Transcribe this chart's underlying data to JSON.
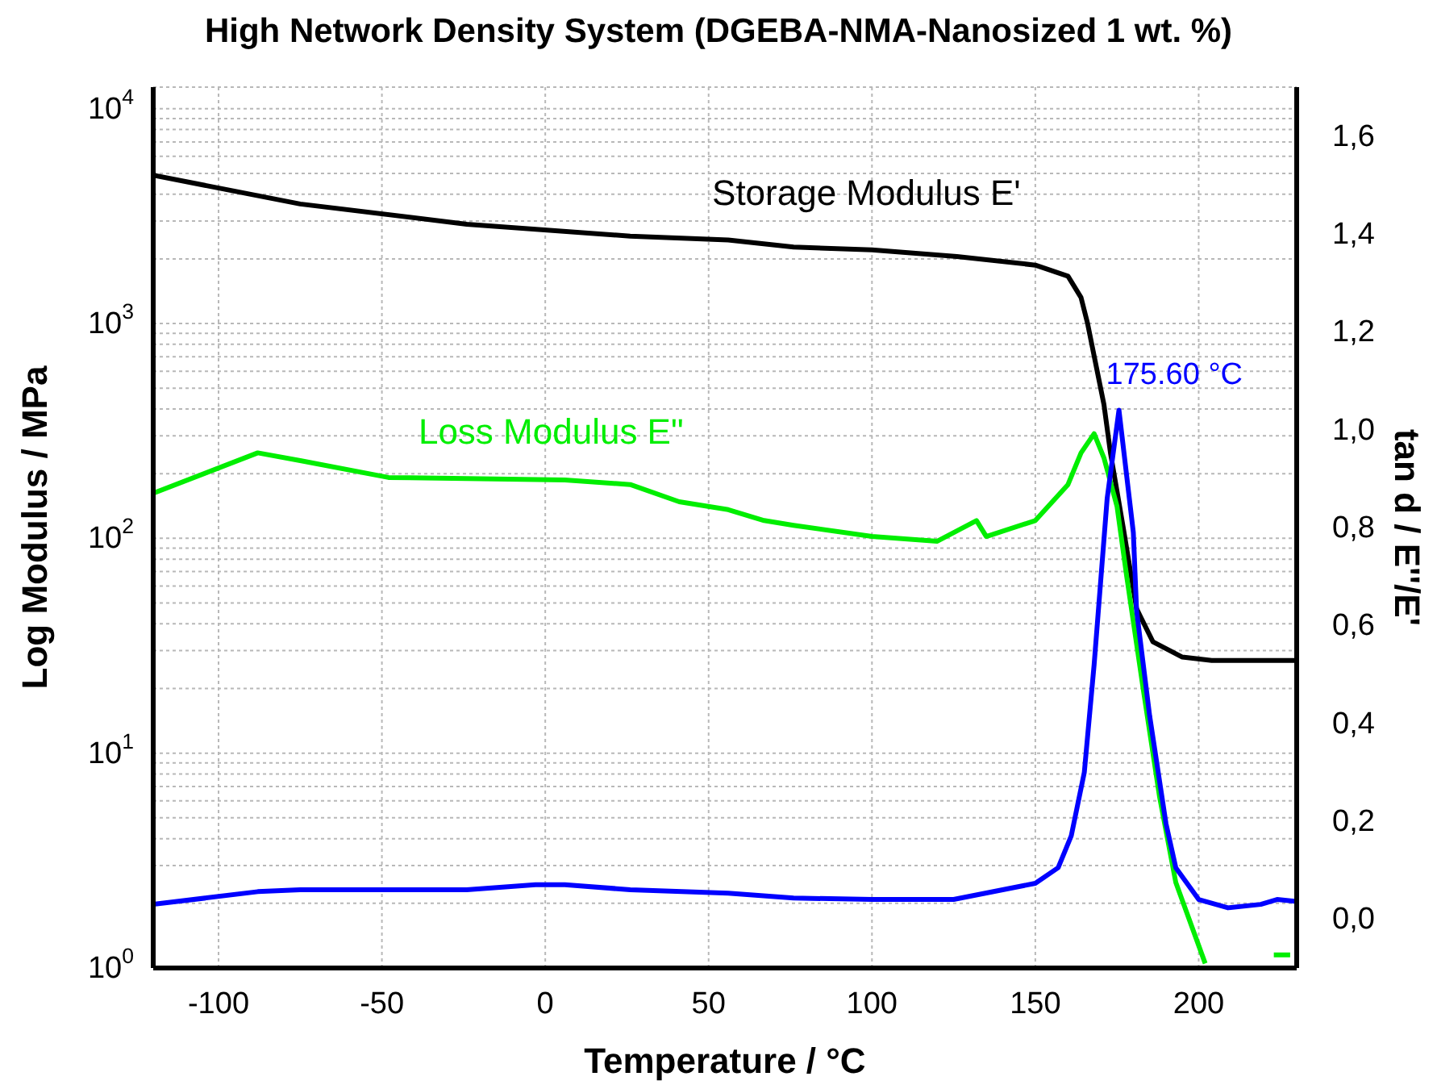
{
  "chart_data": {
    "type": "line",
    "title": "High Network Density System (DGEBA-NMA-Nanosized 1 wt. %)",
    "xlabel": "Temperature / °C",
    "ylabel": "Log Modulus / MPa",
    "y2label": "tan d / E''/E'",
    "log": "y",
    "grid": true,
    "xlim": [
      -120,
      230
    ],
    "xticks": [
      -100,
      -50,
      0,
      50,
      100,
      150,
      200
    ],
    "ylim": [
      1,
      12600
    ],
    "yticks": [
      {
        "value": 1,
        "label": "10$^{0}$"
      },
      {
        "value": 2,
        "label": null
      },
      {
        "value": 3,
        "label": null
      },
      {
        "value": 4,
        "label": null
      },
      {
        "value": 5,
        "label": null
      },
      {
        "value": 6,
        "label": null
      },
      {
        "value": 7,
        "label": null
      },
      {
        "value": 8,
        "label": null
      },
      {
        "value": 9,
        "label": null
      },
      {
        "value": 10,
        "label": "10$^{1}$"
      },
      {
        "value": 20,
        "label": null
      },
      {
        "value": 30,
        "label": null
      },
      {
        "value": 40,
        "label": null
      },
      {
        "value": 50,
        "label": null
      },
      {
        "value": 60,
        "label": null
      },
      {
        "value": 70,
        "label": null
      },
      {
        "value": 80,
        "label": null
      },
      {
        "value": 90,
        "label": null
      },
      {
        "value": 100,
        "label": "10$^{2}$"
      },
      {
        "value": 200,
        "label": null
      },
      {
        "value": 300,
        "label": null
      },
      {
        "value": 400,
        "label": null
      },
      {
        "value": 500,
        "label": null
      },
      {
        "value": 600,
        "label": null
      },
      {
        "value": 700,
        "label": null
      },
      {
        "value": 800,
        "label": null
      },
      {
        "value": 900,
        "label": null
      },
      {
        "value": 1000,
        "label": "10$^{3}$"
      },
      {
        "value": 2000,
        "label": null
      },
      {
        "value": 3000,
        "label": null
      },
      {
        "value": 4000,
        "label": null
      },
      {
        "value": 5000,
        "label": null
      },
      {
        "value": 6000,
        "label": null
      },
      {
        "value": 7000,
        "label": null
      },
      {
        "value": 8000,
        "label": null
      },
      {
        "value": 9000,
        "label": null
      },
      {
        "value": 10000,
        "label": "10$^{4}$"
      }
    ],
    "y2lim": [
      -0.1,
      1.7
    ],
    "y2ticks": [
      {
        "value": 0,
        "label": "0,0"
      },
      {
        "value": 0.2,
        "label": "0,2"
      },
      {
        "value": 0.4,
        "label": "0,4"
      },
      {
        "value": 0.6,
        "label": "0,6"
      },
      {
        "value": 0.8,
        "label": "0,8"
      },
      {
        "value": 1.0,
        "label": "1,0"
      },
      {
        "value": 1.2,
        "label": "1,2"
      },
      {
        "value": 1.4,
        "label": "1,4"
      },
      {
        "value": 1.6,
        "label": "1,6"
      }
    ],
    "annotations": [
      "175.60 °C"
    ],
    "series": [
      {
        "name": "Storage Modulus E'",
        "color": "#000000",
        "x": [
          -120,
          -75,
          -24,
          26,
          56,
          76,
          100,
          126,
          150,
          160,
          164,
          166,
          171,
          173,
          177,
          181,
          186,
          195,
          204,
          230
        ],
        "values": [
          4900,
          3600,
          2900,
          2550,
          2450,
          2270,
          2200,
          2050,
          1870,
          1660,
          1320,
          1000,
          420,
          250,
          110,
          47,
          33,
          28,
          27,
          27
        ]
      },
      {
        "name": "Loss Modulus E\"",
        "color": "#00ee00",
        "x": [
          -120,
          -88,
          -75,
          -48,
          -24,
          6,
          26,
          41,
          56,
          67,
          76,
          100,
          120,
          132,
          135,
          150,
          160,
          164,
          168,
          171,
          175,
          178,
          183,
          188,
          193,
          202,
          216,
          223,
          228
        ],
        "values": [
          162,
          250,
          230,
          192,
          190,
          187,
          178,
          148,
          136,
          121,
          115,
          102,
          97,
          121,
          102,
          121,
          178,
          250,
          307,
          237,
          141,
          66,
          20,
          6.3,
          2.5,
          1.05,
          null,
          1.15,
          1.15
        ]
      },
      {
        "color": "#0000ff",
        "axis": "y2",
        "x": [
          -120,
          -88,
          -75,
          -24,
          -3,
          6,
          26,
          56,
          76,
          100,
          125,
          150,
          157,
          161,
          165,
          168,
          170,
          172,
          175.6,
          180,
          181,
          185,
          190,
          193,
          200,
          209,
          219,
          224,
          230
        ],
        "values": [
          0.03,
          0.056,
          0.06,
          0.06,
          0.07,
          0.07,
          0.06,
          0.053,
          0.043,
          0.04,
          0.04,
          0.073,
          0.105,
          0.17,
          0.3,
          0.52,
          0.69,
          0.86,
          1.04,
          0.79,
          0.63,
          0.415,
          0.195,
          0.105,
          0.04,
          0.023,
          0.03,
          0.04,
          0.036
        ]
      }
    ]
  }
}
